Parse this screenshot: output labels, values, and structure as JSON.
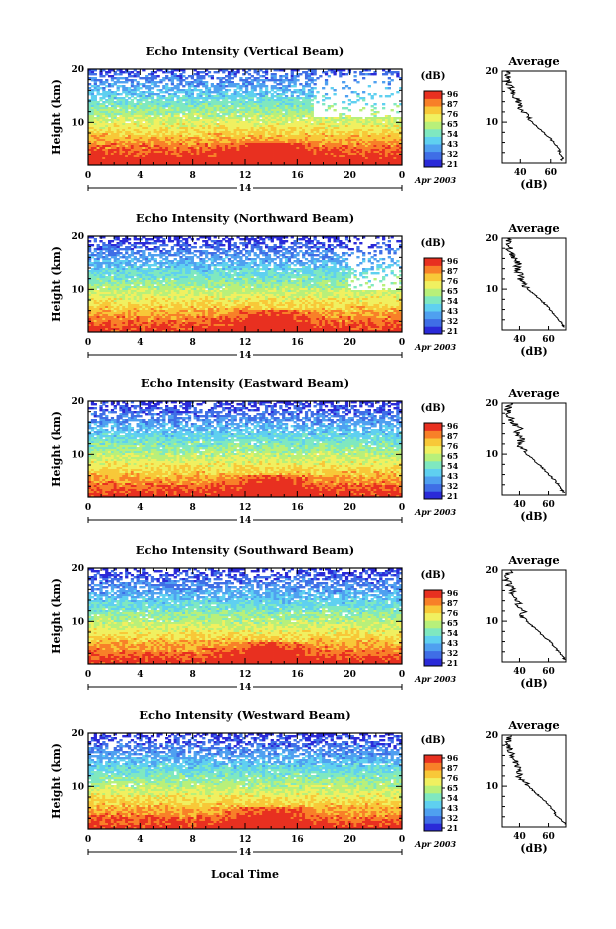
{
  "chart_data": {
    "type": "heatmap",
    "xlabel": "Local Time",
    "x_ticks": [
      "0",
      "4",
      "8",
      "12",
      "16",
      "20",
      "0"
    ],
    "date_marker": "14",
    "date_label": "Apr 2003",
    "ylabel": "Height (km)",
    "y_ticks": [
      "10",
      "20"
    ],
    "ylim": [
      2,
      20
    ],
    "xlim_hours": [
      0,
      24
    ],
    "colorbar_unit": "(dB)",
    "colorbar_colors": [
      "#2a2ad8",
      "#3f6ee6",
      "#4fa0f0",
      "#5fd0f0",
      "#7fe8c0",
      "#b8f07a",
      "#f0f060",
      "#f8c838",
      "#f88028",
      "#e83020"
    ],
    "panels": [
      {
        "title": "Echo Intensity (Vertical Beam)",
        "colorbar_ticks": [
          "96",
          "87",
          "76",
          "65",
          "54",
          "43",
          "32",
          "21"
        ],
        "average": {
          "title": "Average",
          "xlabel": "(dB)",
          "x_ticks": [
            "40",
            "60"
          ],
          "xlim": [
            28,
            70
          ],
          "y_ticks": [
            "10",
            "20"
          ],
          "profile": [
            [
              2.5,
              67
            ],
            [
              3,
              68
            ],
            [
              4,
              66
            ],
            [
              5,
              65
            ],
            [
              6,
              62
            ],
            [
              7,
              59
            ],
            [
              8,
              55
            ],
            [
              9,
              51
            ],
            [
              10,
              48
            ],
            [
              11,
              44
            ],
            [
              12,
              42
            ],
            [
              13,
              40
            ],
            [
              14,
              39
            ],
            [
              15,
              36
            ],
            [
              16,
              34
            ],
            [
              17,
              33
            ],
            [
              18,
              32
            ],
            [
              19,
              32
            ],
            [
              20,
              33
            ]
          ]
        }
      },
      {
        "title": "Echo Intensity (Northward Beam)",
        "colorbar_ticks": [
          "96",
          "87",
          "76",
          "65",
          "54",
          "43",
          "32",
          "21"
        ],
        "average": {
          "title": "Average",
          "xlabel": "(dB)",
          "x_ticks": [
            "40",
            "60"
          ],
          "xlim": [
            28,
            72
          ],
          "y_ticks": [
            "10",
            "20"
          ],
          "profile": [
            [
              2.5,
              71
            ],
            [
              3,
              70
            ],
            [
              4,
              67
            ],
            [
              5,
              64
            ],
            [
              6,
              61
            ],
            [
              7,
              58
            ],
            [
              8,
              54
            ],
            [
              9,
              50
            ],
            [
              10,
              46
            ],
            [
              11,
              43
            ],
            [
              12,
              41
            ],
            [
              13,
              40
            ],
            [
              14,
              38
            ],
            [
              15,
              39
            ],
            [
              16,
              37
            ],
            [
              17,
              34
            ],
            [
              18,
              33
            ],
            [
              19,
              32
            ],
            [
              20,
              34
            ]
          ]
        }
      },
      {
        "title": "Echo Intensity (Eastward Beam)",
        "colorbar_ticks": [
          "96",
          "87",
          "76",
          "65",
          "54",
          "43",
          "32",
          "21"
        ],
        "average": {
          "title": "Average",
          "xlabel": "(dB)",
          "x_ticks": [
            "40",
            "60"
          ],
          "xlim": [
            28,
            72
          ],
          "y_ticks": [
            "10",
            "20"
          ],
          "profile": [
            [
              2.5,
              71
            ],
            [
              3,
              69
            ],
            [
              4,
              67
            ],
            [
              5,
              64
            ],
            [
              6,
              60
            ],
            [
              7,
              57
            ],
            [
              8,
              53
            ],
            [
              9,
              49
            ],
            [
              10,
              45
            ],
            [
              11,
              42
            ],
            [
              12,
              40
            ],
            [
              13,
              41
            ],
            [
              14,
              38
            ],
            [
              15,
              40
            ],
            [
              16,
              36
            ],
            [
              17,
              34
            ],
            [
              18,
              33
            ],
            [
              19,
              32
            ],
            [
              20,
              34
            ]
          ]
        }
      },
      {
        "title": "Echo Intensity (Southward Beam)",
        "colorbar_ticks": [
          "96",
          "87",
          "76",
          "65",
          "54",
          "43",
          "32",
          "21"
        ],
        "average": {
          "title": "Average",
          "xlabel": "(dB)",
          "x_ticks": [
            "40",
            "60"
          ],
          "xlim": [
            28,
            72
          ],
          "y_ticks": [
            "10",
            "20"
          ],
          "profile": [
            [
              2.5,
              71
            ],
            [
              3,
              70
            ],
            [
              4,
              67
            ],
            [
              5,
              64
            ],
            [
              6,
              61
            ],
            [
              7,
              57
            ],
            [
              8,
              53
            ],
            [
              9,
              49
            ],
            [
              10,
              45
            ],
            [
              11,
              41
            ],
            [
              12,
              43
            ],
            [
              13,
              40
            ],
            [
              14,
              38
            ],
            [
              15,
              36
            ],
            [
              16,
              35
            ],
            [
              17,
              33
            ],
            [
              18,
              32
            ],
            [
              19,
              32
            ],
            [
              20,
              34
            ]
          ]
        }
      },
      {
        "title": "Echo Intensity (Westward Beam)",
        "colorbar_ticks": [
          "96",
          "87",
          "76",
          "65",
          "54",
          "43",
          "32",
          "21"
        ],
        "average": {
          "title": "Average",
          "xlabel": "(dB)",
          "x_ticks": [
            "40",
            "60"
          ],
          "xlim": [
            28,
            72
          ],
          "y_ticks": [
            "10",
            "20"
          ],
          "profile": [
            [
              2.5,
              72
            ],
            [
              3,
              70
            ],
            [
              4,
              66
            ],
            [
              5,
              64
            ],
            [
              6,
              61
            ],
            [
              7,
              58
            ],
            [
              8,
              54
            ],
            [
              9,
              50
            ],
            [
              10,
              46
            ],
            [
              11,
              42
            ],
            [
              12,
              40
            ],
            [
              13,
              39
            ],
            [
              14,
              38
            ],
            [
              15,
              37
            ],
            [
              16,
              35
            ],
            [
              17,
              33
            ],
            [
              18,
              32
            ],
            [
              19,
              32
            ],
            [
              20,
              34
            ]
          ]
        }
      }
    ]
  }
}
